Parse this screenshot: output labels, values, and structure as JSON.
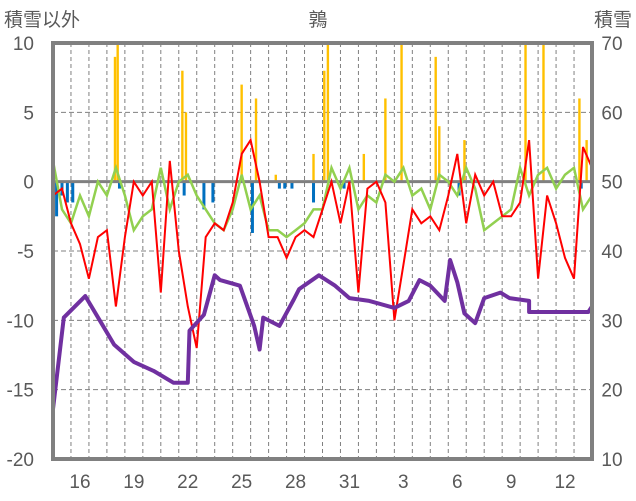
{
  "chart_data": {
    "type": "line",
    "title": "鶉",
    "ylabel_left": "積雪以外",
    "ylabel_right": "積雪",
    "ylim_left": [
      -20,
      10
    ],
    "ylim_right": [
      10,
      70
    ],
    "yticks_left": [
      "10",
      "5",
      "0",
      "-5",
      "-10",
      "-15",
      "-20"
    ],
    "yticks_right": [
      "70",
      "60",
      "50",
      "40",
      "30",
      "20",
      "10"
    ],
    "x_days": 30,
    "xticks": [
      {
        "day": 1.5,
        "label": "16"
      },
      {
        "day": 4.5,
        "label": "19"
      },
      {
        "day": 7.5,
        "label": "22"
      },
      {
        "day": 10.5,
        "label": "25"
      },
      {
        "day": 13.5,
        "label": "28"
      },
      {
        "day": 16.5,
        "label": "31"
      },
      {
        "day": 19.5,
        "label": "3"
      },
      {
        "day": 22.5,
        "label": "6"
      },
      {
        "day": 25.5,
        "label": "9"
      },
      {
        "day": 28.5,
        "label": "12"
      }
    ],
    "grid": true,
    "colors": {
      "red": "#ff0000",
      "green": "#92d050",
      "purple": "#7030a0",
      "yellow": "#ffc000",
      "blue": "#0070c0",
      "axis": "#808080"
    },
    "red_step": 0.5,
    "red_values": [
      -1,
      -0.5,
      -3,
      -4.5,
      -7,
      -4,
      -3.5,
      -9,
      -4,
      0,
      -1,
      0,
      -8,
      1.5,
      -5,
      -9,
      -12,
      -4,
      -3,
      -3.5,
      -1.5,
      2,
      3,
      0,
      -4,
      -4,
      -5.5,
      -4,
      -3.5,
      -4,
      -2,
      0,
      -3,
      0,
      -8,
      -0.5,
      0,
      -1.5,
      -10,
      -6,
      -2,
      -3,
      -2.5,
      -3.5,
      -1,
      2,
      -3,
      0.5,
      -1,
      0,
      -2.5,
      -2.5,
      -1.5,
      3,
      -7,
      -1,
      -3,
      -5.5,
      -7,
      2.5,
      1
    ],
    "green_step": 0.5,
    "green_values": [
      1.5,
      -2,
      -3,
      -1,
      -2.5,
      0,
      -1,
      1,
      -1,
      -3.5,
      -2.5,
      -2,
      1,
      -2,
      0,
      0.5,
      -1,
      -2,
      -3,
      -3.5,
      -2,
      0.5,
      -2,
      -1,
      -3.5,
      -3.5,
      -4,
      -3.5,
      -3,
      -2,
      -2,
      1,
      -0.5,
      1,
      -2,
      -1,
      -1.5,
      0.5,
      0,
      1,
      -1,
      -0.5,
      -2,
      0.5,
      0,
      -1,
      1,
      -0.5,
      -3.5,
      -3,
      -2.5,
      -2,
      1,
      -1,
      0.5,
      1,
      -0.5,
      0.5,
      1,
      -2,
      -1
    ],
    "snow_depth": [
      [
        0,
        17.2
      ],
      [
        0.6,
        30.4
      ],
      [
        1.8,
        33.5
      ],
      [
        2.6,
        30
      ],
      [
        3.4,
        26.5
      ],
      [
        4.5,
        24
      ],
      [
        5.6,
        22.7
      ],
      [
        6.7,
        21
      ],
      [
        7.5,
        21
      ],
      [
        7.6,
        28.5
      ],
      [
        8.4,
        30.8
      ],
      [
        9,
        36.5
      ],
      [
        9.3,
        35.8
      ],
      [
        10.4,
        35
      ],
      [
        11.2,
        29.2
      ],
      [
        11.5,
        25.8
      ],
      [
        11.7,
        30.4
      ],
      [
        12.6,
        29.2
      ],
      [
        13.4,
        33
      ],
      [
        13.7,
        34.5
      ],
      [
        14.8,
        36.5
      ],
      [
        15.7,
        35
      ],
      [
        16.5,
        33.2
      ],
      [
        17.6,
        32.8
      ],
      [
        19,
        31.8
      ],
      [
        19.8,
        32.8
      ],
      [
        20.4,
        35.8
      ],
      [
        21,
        35
      ],
      [
        21.8,
        32.8
      ],
      [
        22.1,
        38.7
      ],
      [
        22.5,
        35.5
      ],
      [
        22.9,
        31
      ],
      [
        23.5,
        29.6
      ],
      [
        24,
        33.2
      ],
      [
        24.9,
        34
      ],
      [
        25.4,
        33.2
      ],
      [
        26.5,
        32.8
      ],
      [
        26.5,
        31.2
      ],
      [
        29.8,
        31.2
      ],
      [
        30,
        32
      ]
    ],
    "yellow_bars": [
      [
        3.45,
        9
      ],
      [
        3.6,
        10
      ],
      [
        7.2,
        8
      ],
      [
        7.4,
        5
      ],
      [
        10.5,
        7
      ],
      [
        11.3,
        6
      ],
      [
        12.4,
        0.5
      ],
      [
        14.5,
        2
      ],
      [
        15.1,
        8
      ],
      [
        15.3,
        10
      ],
      [
        17.3,
        2
      ],
      [
        18.5,
        6
      ],
      [
        19.4,
        10
      ],
      [
        21.3,
        9
      ],
      [
        21.5,
        4
      ],
      [
        22.9,
        3
      ],
      [
        26.3,
        10
      ],
      [
        27.3,
        10
      ],
      [
        29.3,
        6
      ],
      [
        29.7,
        3
      ]
    ],
    "blue_bars": [
      [
        0.2,
        -2.5
      ],
      [
        0.5,
        -1
      ],
      [
        0.8,
        -1.5
      ],
      [
        1.1,
        -1.5
      ],
      [
        3.7,
        -0.5
      ],
      [
        7.3,
        -1
      ],
      [
        8.4,
        -2
      ],
      [
        8.9,
        -1.5
      ],
      [
        11.1,
        -3.7
      ],
      [
        12.6,
        -0.5
      ],
      [
        12.9,
        -0.5
      ],
      [
        13.3,
        -0.5
      ],
      [
        14.5,
        -1.5
      ],
      [
        16.2,
        -0.5
      ],
      [
        22.6,
        -1
      ],
      [
        29.4,
        -0.5
      ]
    ]
  }
}
